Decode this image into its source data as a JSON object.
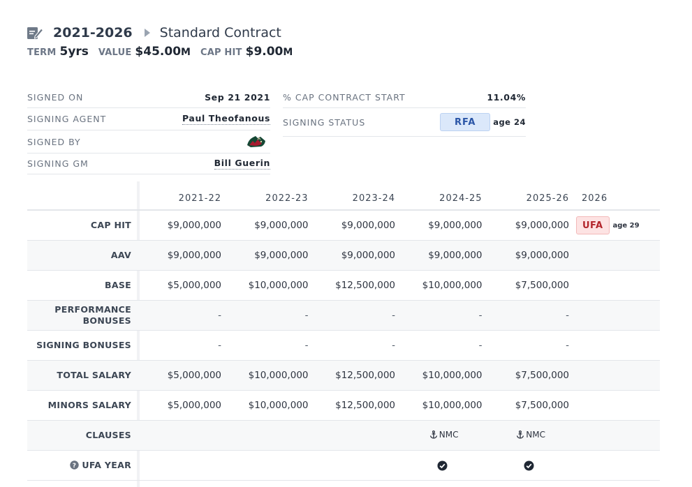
{
  "header": {
    "years": "2021-2026",
    "type": "Standard Contract"
  },
  "summary": {
    "term_label": "TERM",
    "term_value": "5yrs",
    "value_label": "VALUE",
    "value_value": "$45.00",
    "value_unit": "M",
    "caphit_label": "CAP HIT",
    "caphit_value": "$9.00",
    "caphit_unit": "M"
  },
  "info_left": {
    "signed_on_label": "SIGNED ON",
    "signed_on_value": "Sep 21 2021",
    "agent_label": "SIGNING AGENT",
    "agent_value": "Paul Theofanous",
    "signed_by_label": "SIGNED BY",
    "signed_by_logo": "minnesota-wild-logo",
    "gm_label": "SIGNING GM",
    "gm_value": "Bill Guerin"
  },
  "info_right": {
    "cap_pct_label": "% CAP CONTRACT START",
    "cap_pct_value": "11.04%",
    "status_label": "SIGNING STATUS",
    "status_value": "RFA",
    "status_age": "age 24"
  },
  "table": {
    "seasons": [
      "2021-22",
      "2022-23",
      "2023-24",
      "2024-25",
      "2025-26"
    ],
    "final_col": "2026",
    "final_status": "UFA",
    "final_age": "age 29",
    "rows": {
      "cap_hit": {
        "label": "CAP HIT",
        "values": [
          "$9,000,000",
          "$9,000,000",
          "$9,000,000",
          "$9,000,000",
          "$9,000,000"
        ]
      },
      "aav": {
        "label": "AAV",
        "values": [
          "$9,000,000",
          "$9,000,000",
          "$9,000,000",
          "$9,000,000",
          "$9,000,000"
        ]
      },
      "base": {
        "label": "BASE",
        "values": [
          "$5,000,000",
          "$10,000,000",
          "$12,500,000",
          "$10,000,000",
          "$7,500,000"
        ]
      },
      "perf": {
        "label_1": "PERFORMANCE",
        "label_2": "BONUSES",
        "values": [
          "-",
          "-",
          "-",
          "-",
          "-"
        ]
      },
      "signing": {
        "label": "SIGNING BONUSES",
        "values": [
          "-",
          "-",
          "-",
          "-",
          "-"
        ]
      },
      "total": {
        "label": "TOTAL SALARY",
        "values": [
          "$5,000,000",
          "$10,000,000",
          "$12,500,000",
          "$10,000,000",
          "$7,500,000"
        ]
      },
      "minors": {
        "label": "MINORS SALARY",
        "values": [
          "$5,000,000",
          "$10,000,000",
          "$12,500,000",
          "$10,000,000",
          "$7,500,000"
        ]
      },
      "clauses": {
        "label": "CLAUSES",
        "values": [
          "",
          "",
          "",
          "NMC",
          "NMC"
        ]
      },
      "ufa_year": {
        "label": "UFA YEAR",
        "values": [
          "",
          "",
          "",
          "check",
          "check"
        ]
      }
    }
  },
  "icons": {
    "contract": "contract-edit-icon",
    "caret": "chevron-right-icon",
    "anchor": "anchor-icon",
    "check": "check-circle-icon",
    "help": "help-circle-icon"
  },
  "colors": {
    "rfa_bg": "#dbe8fa",
    "rfa_text": "#2a55a6",
    "ufa_bg": "#fde3e3",
    "ufa_text": "#b3262c"
  }
}
